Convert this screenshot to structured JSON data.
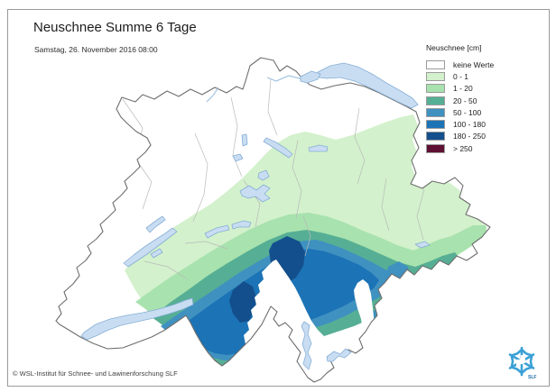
{
  "title": "Neuschnee Summe 6 Tage",
  "subtitle": "Samstag, 26. November 2016 08:00",
  "footer": "© WSL-Institut für Schnee- und Lawinenforschung SLF",
  "logo": {
    "label": "SLF"
  },
  "legend": {
    "title": "Neuschnee [cm]",
    "items": [
      {
        "label": "keine Werte",
        "color": "#ffffff"
      },
      {
        "label": "0 - 1",
        "color": "#d3f1cc"
      },
      {
        "label": "1 - 20",
        "color": "#a8e2ae"
      },
      {
        "label": "20 - 50",
        "color": "#56af94"
      },
      {
        "label": "50 - 100",
        "color": "#3f91c0"
      },
      {
        "label": "100 - 180",
        "color": "#1c73b6"
      },
      {
        "label": "180 - 250",
        "color": "#134f8c"
      },
      {
        "label": "> 250",
        "color": "#5e1133"
      }
    ]
  },
  "colors": {
    "lake": "#c9ddf2",
    "lake_border": "#85aed6",
    "country_border": "#6e6e6e",
    "canton_border": "#b9b9b9",
    "frame_border": "#9a9a9a",
    "logo_blue": "#3ba1d6"
  }
}
